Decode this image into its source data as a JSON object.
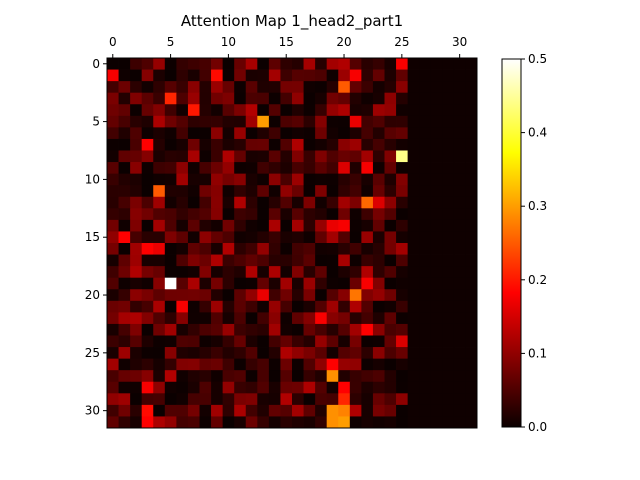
{
  "chart_data": {
    "type": "heatmap",
    "title": "Attention Map 1_head2_part1",
    "rows": 32,
    "cols": 32,
    "x_ticks": [
      0,
      5,
      10,
      15,
      20,
      25,
      30
    ],
    "y_ticks": [
      0,
      5,
      10,
      15,
      20,
      25,
      30
    ],
    "colormap": "hot",
    "vmin": 0.0,
    "vmax": 0.5,
    "colorbar_ticks": [
      "0.0",
      "0.1",
      "0.2",
      "0.3",
      "0.4",
      "0.5"
    ],
    "active_cols": 26,
    "background_value": 0.003,
    "seed": 12345,
    "typical_range": [
      0.0,
      0.12
    ],
    "highlights": [
      {
        "row": 0,
        "col": 25,
        "value": 0.17
      },
      {
        "row": 1,
        "col": 0,
        "value": 0.17
      },
      {
        "row": 1,
        "col": 9,
        "value": 0.19
      },
      {
        "row": 1,
        "col": 21,
        "value": 0.17
      },
      {
        "row": 2,
        "col": 20,
        "value": 0.25
      },
      {
        "row": 3,
        "col": 5,
        "value": 0.21
      },
      {
        "row": 4,
        "col": 7,
        "value": 0.2
      },
      {
        "row": 5,
        "col": 13,
        "value": 0.3
      },
      {
        "row": 5,
        "col": 21,
        "value": 0.16
      },
      {
        "row": 7,
        "col": 3,
        "value": 0.18
      },
      {
        "row": 8,
        "col": 25,
        "value": 0.44
      },
      {
        "row": 9,
        "col": 20,
        "value": 0.15
      },
      {
        "row": 9,
        "col": 22,
        "value": 0.17
      },
      {
        "row": 11,
        "col": 4,
        "value": 0.25
      },
      {
        "row": 12,
        "col": 22,
        "value": 0.26
      },
      {
        "row": 12,
        "col": 23,
        "value": 0.15
      },
      {
        "row": 14,
        "col": 19,
        "value": 0.16
      },
      {
        "row": 14,
        "col": 20,
        "value": 0.17
      },
      {
        "row": 15,
        "col": 1,
        "value": 0.18
      },
      {
        "row": 16,
        "col": 3,
        "value": 0.18
      },
      {
        "row": 16,
        "col": 4,
        "value": 0.16
      },
      {
        "row": 19,
        "col": 5,
        "value": 0.5
      },
      {
        "row": 19,
        "col": 22,
        "value": 0.17
      },
      {
        "row": 20,
        "col": 13,
        "value": 0.16
      },
      {
        "row": 20,
        "col": 21,
        "value": 0.27
      },
      {
        "row": 21,
        "col": 6,
        "value": 0.17
      },
      {
        "row": 22,
        "col": 18,
        "value": 0.17
      },
      {
        "row": 23,
        "col": 22,
        "value": 0.18
      },
      {
        "row": 24,
        "col": 25,
        "value": 0.15
      },
      {
        "row": 26,
        "col": 19,
        "value": 0.18
      },
      {
        "row": 27,
        "col": 19,
        "value": 0.29
      },
      {
        "row": 28,
        "col": 3,
        "value": 0.17
      },
      {
        "row": 28,
        "col": 20,
        "value": 0.18
      },
      {
        "row": 29,
        "col": 20,
        "value": 0.21
      },
      {
        "row": 30,
        "col": 3,
        "value": 0.19
      },
      {
        "row": 31,
        "col": 3,
        "value": 0.18
      },
      {
        "row": 30,
        "col": 19,
        "value": 0.29
      },
      {
        "row": 30,
        "col": 20,
        "value": 0.28
      },
      {
        "row": 31,
        "col": 19,
        "value": 0.29
      },
      {
        "row": 31,
        "col": 20,
        "value": 0.3
      }
    ]
  }
}
